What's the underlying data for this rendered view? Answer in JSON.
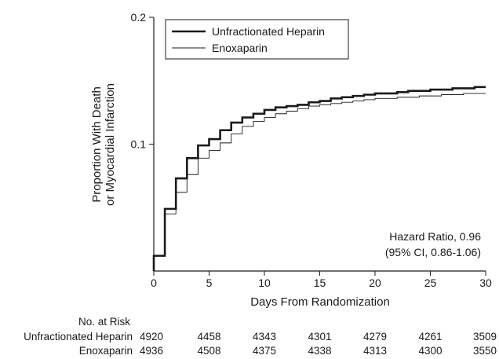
{
  "chart_data": {
    "type": "line",
    "step": true,
    "title": "",
    "xlabel": "Days From Randomization",
    "ylabel_lines": [
      "Proportion With Death",
      "or Myocardial Infarction"
    ],
    "xlim": [
      0,
      30
    ],
    "ylim": [
      0,
      0.2
    ],
    "x_ticks": [
      0,
      5,
      10,
      15,
      20,
      25,
      30
    ],
    "x_tick_labels": [
      "0",
      "5",
      "10",
      "15",
      "20",
      "25",
      "30"
    ],
    "y_ticks": [
      0.1,
      0.2
    ],
    "y_tick_labels": [
      "0.1",
      "0.2"
    ],
    "grid": false,
    "legend_position": "top-left",
    "series": [
      {
        "name": "Unfractionated Heparin",
        "line": "thick",
        "x": [
          0,
          1,
          2,
          3,
          4,
          5,
          6,
          7,
          8,
          9,
          10,
          11,
          12,
          13,
          14,
          15,
          16,
          17,
          18,
          19,
          20,
          21,
          22,
          23,
          24,
          25,
          26,
          27,
          28,
          29,
          30
        ],
        "y": [
          0.012,
          0.049,
          0.073,
          0.089,
          0.099,
          0.104,
          0.111,
          0.117,
          0.121,
          0.124,
          0.127,
          0.129,
          0.13,
          0.131,
          0.133,
          0.134,
          0.136,
          0.137,
          0.138,
          0.139,
          0.14,
          0.14,
          0.141,
          0.142,
          0.142,
          0.143,
          0.143,
          0.144,
          0.144,
          0.145,
          0.145
        ]
      },
      {
        "name": "Enoxaparin",
        "line": "thin",
        "x": [
          0,
          1,
          2,
          3,
          4,
          5,
          6,
          7,
          8,
          9,
          10,
          11,
          12,
          13,
          14,
          15,
          16,
          17,
          18,
          19,
          20,
          21,
          22,
          23,
          24,
          25,
          26,
          27,
          28,
          29,
          30
        ],
        "y": [
          0.012,
          0.045,
          0.062,
          0.076,
          0.089,
          0.095,
          0.101,
          0.108,
          0.114,
          0.118,
          0.121,
          0.124,
          0.126,
          0.128,
          0.13,
          0.131,
          0.132,
          0.133,
          0.134,
          0.135,
          0.136,
          0.136,
          0.137,
          0.137,
          0.138,
          0.138,
          0.139,
          0.139,
          0.14,
          0.14,
          0.14
        ]
      }
    ],
    "annotation_lines": [
      "Hazard Ratio, 0.96",
      "(95% CI, 0.86-1.06)"
    ],
    "risk_table": {
      "title": "No. at Risk",
      "x": [
        0,
        5,
        10,
        15,
        20,
        25,
        30
      ],
      "rows": [
        {
          "name": "Unfractionated Heparin",
          "values": [
            "4920",
            "4458",
            "4343",
            "4301",
            "4279",
            "4261",
            "3509"
          ]
        },
        {
          "name": "Enoxaparin",
          "values": [
            "4936",
            "4508",
            "4375",
            "4338",
            "4313",
            "4300",
            "3550"
          ]
        }
      ]
    }
  }
}
